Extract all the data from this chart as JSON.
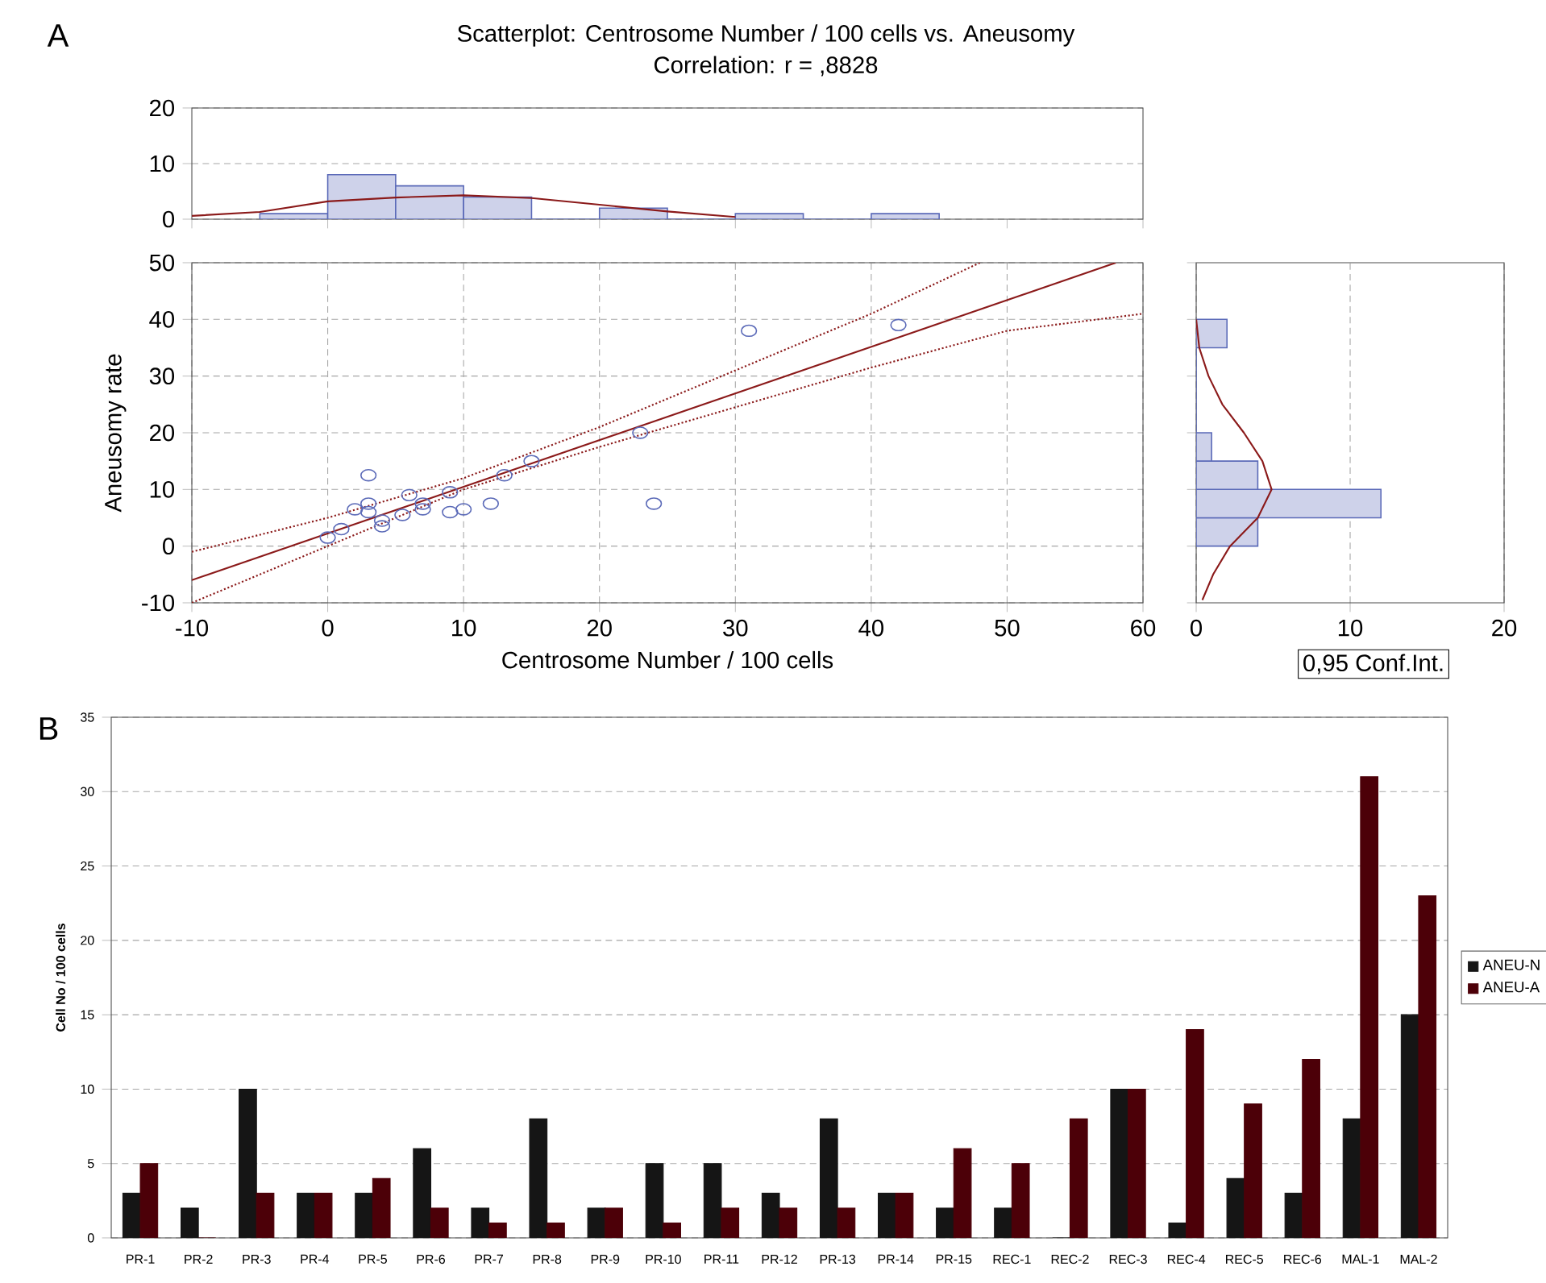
{
  "chart_data": [
    {
      "type": "histogram",
      "title": "Scatterplot: Centrosome Number / 100 cells vs. Aneusomy",
      "subtitle": "Correlation: r = ,8828",
      "annotations": [
        "A"
      ],
      "bins": [
        -5,
        0,
        5,
        10,
        15,
        20,
        25,
        30,
        35,
        40,
        45
      ],
      "values": [
        1,
        8,
        6,
        4,
        0,
        2,
        0,
        1,
        0,
        1
      ],
      "color": "#5b6ab8",
      "series": [
        {
          "type": "line",
          "color": "#8b1a1a",
          "x": [
            -10,
            -5,
            0,
            5,
            10,
            15,
            20,
            25,
            30
          ],
          "values": [
            0.6,
            1.3,
            3.2,
            3.9,
            4.3,
            3.8,
            2.6,
            1.4,
            0.4
          ]
        }
      ],
      "xlim": [
        -10,
        60
      ],
      "xticks": [
        -10,
        0,
        10,
        20,
        30,
        40,
        50,
        60
      ],
      "ylim": [
        0,
        20
      ],
      "yticks": [
        0,
        10,
        20
      ],
      "grid": "y",
      "tick_labels": "y"
    },
    {
      "type": "scatter",
      "xlabel": "Centrosome Number / 100 cells",
      "ylabel": "Aneusomy rate",
      "series": [
        {
          "type": "scatter",
          "marker": "circle",
          "color": "#5b6ab8",
          "x": [
            0,
            1,
            2,
            3,
            3,
            3,
            4,
            4,
            5.5,
            6,
            7,
            7,
            9,
            9,
            10,
            12,
            13,
            15,
            23,
            24,
            31,
            42
          ],
          "values": [
            1.5,
            3,
            6.5,
            12.5,
            7.5,
            6,
            4.5,
            3.5,
            5.5,
            9,
            7.5,
            6.5,
            9.5,
            6,
            6.5,
            7.5,
            12.5,
            15,
            20,
            7.5,
            38,
            39
          ]
        },
        {
          "type": "line",
          "color": "#8b1a1a",
          "line_style": "solid",
          "x": [
            -10,
            58
          ],
          "values": [
            -6,
            50
          ]
        },
        {
          "type": "line",
          "color": "#8b1a1a",
          "line_style": "dotted",
          "x": [
            -10,
            0,
            10,
            20,
            30,
            40,
            48
          ],
          "values": [
            -1,
            5,
            12,
            21,
            31,
            41,
            50
          ]
        },
        {
          "type": "line",
          "color": "#8b1a1a",
          "line_style": "dotted",
          "x": [
            -10,
            0,
            10,
            20,
            30,
            40,
            50,
            60
          ],
          "values": [
            -10,
            0,
            10,
            17.5,
            24.5,
            31.5,
            38,
            41
          ]
        }
      ],
      "xlim": [
        -10,
        60
      ],
      "xticks": [
        -10,
        0,
        10,
        20,
        30,
        40,
        50,
        60
      ],
      "ylim": [
        -10,
        50
      ],
      "yticks": [
        -10,
        0,
        10,
        20,
        30,
        40,
        50
      ],
      "grid": true
    },
    {
      "type": "histogram",
      "orientation": "horizontal",
      "annotations": [
        "0,95 Conf.Int."
      ],
      "bins": [
        0,
        5,
        10,
        15,
        20,
        25,
        30,
        35,
        40
      ],
      "values": [
        4,
        12,
        4,
        1,
        0,
        0,
        0,
        2
      ],
      "color": "#5b6ab8",
      "series": [
        {
          "type": "line",
          "color": "#8b1a1a",
          "x": [
            -9.5,
            -5,
            0,
            5,
            10,
            15,
            20,
            25,
            30,
            35,
            40
          ],
          "values": [
            0.4,
            1.1,
            2.2,
            4,
            4.9,
            4.3,
            3.1,
            1.7,
            0.8,
            0.2,
            0
          ]
        }
      ],
      "xlim": [
        0,
        20
      ],
      "xticks": [
        0,
        10,
        20
      ],
      "ylim": [
        -10,
        50
      ],
      "yticks": [
        -10,
        0,
        10,
        20,
        30,
        40,
        50
      ],
      "grid": "x",
      "tick_labels": "x"
    },
    {
      "type": "bar",
      "annotations": [
        "B"
      ],
      "ylabel": "Cell No / 100 cells",
      "categories": [
        "PR-1",
        "PR-2",
        "PR-3",
        "PR-4",
        "PR-5",
        "PR-6",
        "PR-7",
        "PR-8",
        "PR-9",
        "PR-10",
        "PR-11",
        "PR-12",
        "PR-13",
        "PR-14",
        "PR-15",
        "REC-1",
        "REC-2",
        "REC-3",
        "REC-4",
        "REC-5",
        "REC-6",
        "MAL-1",
        "MAL-2"
      ],
      "series": [
        {
          "name": "ANEU-N",
          "color": "#151515",
          "values": [
            3,
            2,
            10,
            3,
            3,
            6,
            2,
            8,
            2,
            5,
            5,
            3,
            8,
            3,
            2,
            2,
            0,
            10,
            1,
            4,
            3,
            8,
            15
          ]
        },
        {
          "name": "ANEU-A",
          "color": "#4c0008",
          "values": [
            5,
            0,
            3,
            3,
            4,
            2,
            1,
            1,
            2,
            1,
            2,
            2,
            2,
            3,
            6,
            5,
            8,
            10,
            14,
            9,
            12,
            31,
            23
          ]
        }
      ],
      "ylim": [
        0,
        35
      ],
      "yticks": [
        0,
        5,
        10,
        15,
        20,
        25,
        30,
        35
      ],
      "grid": "y",
      "legend": "right"
    }
  ]
}
